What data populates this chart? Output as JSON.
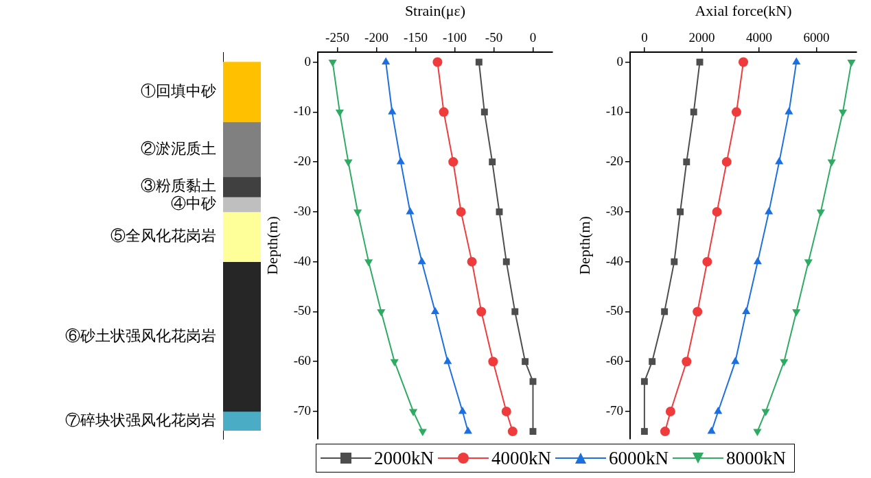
{
  "chart_data": [
    {
      "type": "bar",
      "stacked": true,
      "categories": [
        null
      ],
      "ylim": [
        -75.5,
        2
      ],
      "tick_labels": false,
      "series": [
        {
          "name": "①回填中砂",
          "color": "#ffc000",
          "values": [
            -12
          ]
        },
        {
          "name": "②淤泥质土",
          "color": "#808080",
          "values": [
            -11
          ]
        },
        {
          "name": "③粉质黏土",
          "color": "#404040",
          "values": [
            -4
          ]
        },
        {
          "name": "④中砂",
          "color": "#bfbfbf",
          "values": [
            -3
          ]
        },
        {
          "name": "⑤全风化花岗岩",
          "color": "#ffff99",
          "values": [
            -10
          ]
        },
        {
          "name": "⑥砂土状强风化花岗岩",
          "color": "#262626",
          "values": [
            -30
          ]
        },
        {
          "name": "⑦碎块状强风化花岗岩",
          "color": "#4bacc6",
          "values": [
            -3.8
          ]
        }
      ]
    },
    {
      "type": "line",
      "xlabel": "Strain(με)",
      "ylabel": "Depth(m)",
      "xlim": [
        -275,
        25
      ],
      "xticks": [
        -250,
        -200,
        -150,
        -100,
        -50,
        0
      ],
      "ylim": [
        -75.5,
        2
      ],
      "yticks": [
        0,
        -10,
        -20,
        -30,
        -40,
        -50,
        -60,
        -70
      ],
      "grid": false,
      "legend": "bottom",
      "series": [
        {
          "name": "2000kN",
          "color": "#4d4d4d",
          "marker": "square",
          "x": [
            -69,
            -62,
            -52,
            -43,
            -34,
            -23,
            -10,
            0,
            0
          ],
          "values": [
            0,
            -10,
            -20,
            -30,
            -40,
            -50,
            -60,
            -64,
            -74
          ]
        },
        {
          "name": "4000kN",
          "color": "#ef3b3b",
          "marker": "circle",
          "x": [
            -122,
            -114,
            -102,
            -92,
            -78,
            -66,
            -51,
            -34,
            -26
          ],
          "values": [
            0,
            -10,
            -20,
            -30,
            -40,
            -50,
            -60,
            -70,
            -74
          ]
        },
        {
          "name": "6000kN",
          "color": "#1c6fe0",
          "marker": "triangle",
          "x": [
            -188,
            -180,
            -169,
            -157,
            -142,
            -125,
            -109,
            -90,
            -83
          ],
          "values": [
            0,
            -10,
            -20,
            -30,
            -40,
            -50,
            -60,
            -70,
            -74
          ]
        },
        {
          "name": "8000kN",
          "color": "#2eaa62",
          "marker": "triangle-down",
          "x": [
            -256,
            -247,
            -236,
            -224,
            -210,
            -194,
            -177,
            -153,
            -141
          ],
          "values": [
            0,
            -10,
            -20,
            -30,
            -40,
            -50,
            -60,
            -70,
            -74
          ]
        }
      ]
    },
    {
      "type": "line",
      "xlabel": "Axial force(kN)",
      "ylabel": "Depth(m)",
      "xlim": [
        -500,
        7400
      ],
      "xticks": [
        0,
        2000,
        4000,
        6000
      ],
      "ylim": [
        -75.5,
        2
      ],
      "yticks": [
        0,
        -10,
        -20,
        -30,
        -40,
        -50,
        -60,
        -70
      ],
      "grid": false,
      "series": [
        {
          "color": "#4d4d4d",
          "marker": "square",
          "x": [
            1930,
            1720,
            1470,
            1250,
            1040,
            700,
            270,
            0,
            0
          ],
          "values": [
            0,
            -10,
            -20,
            -30,
            -40,
            -50,
            -60,
            -64,
            -74
          ]
        },
        {
          "color": "#ef3b3b",
          "marker": "circle",
          "x": [
            3450,
            3210,
            2870,
            2530,
            2190,
            1850,
            1470,
            910,
            720
          ],
          "values": [
            0,
            -10,
            -20,
            -30,
            -40,
            -50,
            -60,
            -70,
            -74
          ]
        },
        {
          "color": "#1c6fe0",
          "marker": "triangle",
          "x": [
            5300,
            5040,
            4700,
            4340,
            3950,
            3550,
            3170,
            2570,
            2340
          ],
          "values": [
            0,
            -10,
            -20,
            -30,
            -40,
            -50,
            -60,
            -70,
            -74
          ]
        },
        {
          "color": "#2eaa62",
          "marker": "triangle-down",
          "x": [
            7220,
            6920,
            6530,
            6150,
            5720,
            5300,
            4870,
            4230,
            3940
          ],
          "values": [
            0,
            -10,
            -20,
            -30,
            -40,
            -50,
            -60,
            -70,
            -74
          ]
        }
      ]
    }
  ]
}
